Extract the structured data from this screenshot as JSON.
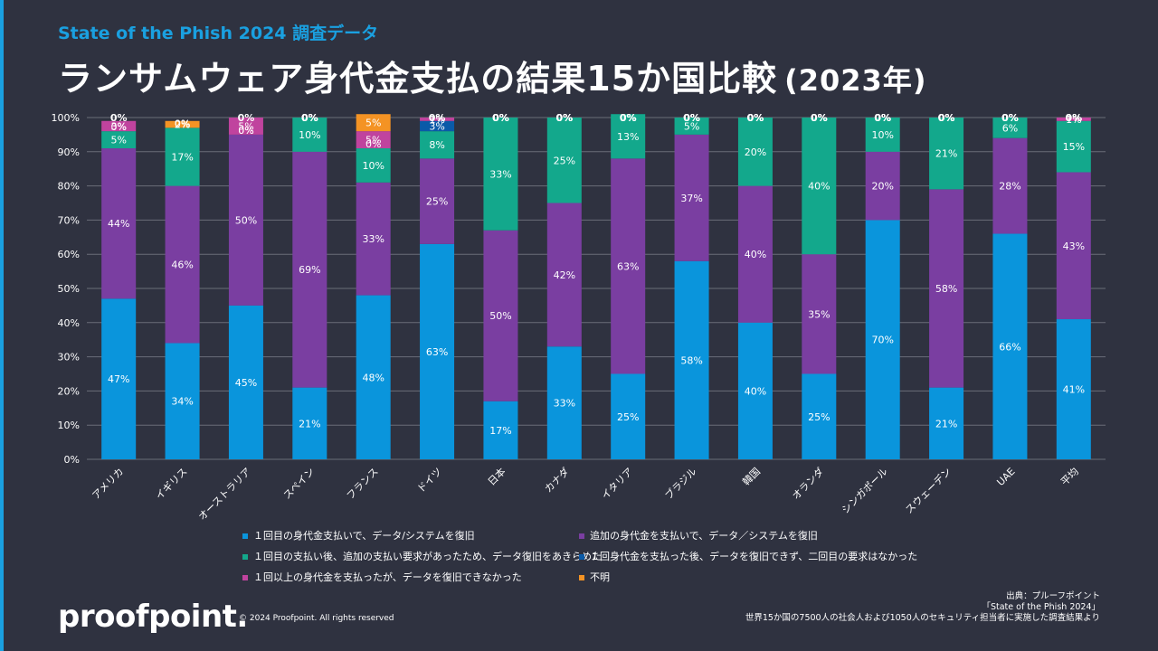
{
  "header": {
    "subtitle": "State of the Phish 2024 調査データ",
    "title": "ランサムウェア身代金支払の結果15か国比較",
    "title_year": "(2023年)"
  },
  "chart_data": {
    "type": "bar",
    "stacked": true,
    "ylim": [
      0,
      100
    ],
    "yticks": [
      "0%",
      "10%",
      "20%",
      "30%",
      "40%",
      "50%",
      "60%",
      "70%",
      "80%",
      "90%",
      "100%"
    ],
    "categories": [
      "アメリカ",
      "イギリス",
      "オーストラリア",
      "スペイン",
      "フランス",
      "ドイツ",
      "日本",
      "カナダ",
      "イタリア",
      "ブラジル",
      "韓国",
      "オランダ",
      "シンガポール",
      "スウェーデン",
      "UAE",
      "平均"
    ],
    "series": [
      {
        "name": "１回目の身代金支払いで、データ/システムを復旧",
        "color": "#0a95dc",
        "values": [
          47,
          34,
          45,
          21,
          48,
          63,
          17,
          33,
          25,
          58,
          40,
          25,
          70,
          21,
          66,
          41
        ]
      },
      {
        "name": "追加の身代金を支払いで、データ／システムを復旧",
        "color": "#7a3ea1",
        "values": [
          44,
          46,
          50,
          69,
          33,
          25,
          50,
          42,
          63,
          37,
          40,
          35,
          20,
          58,
          28,
          43
        ]
      },
      {
        "name": "１回目の支払い後、追加の支払い要求があったため、データ復旧をあきらめた",
        "color": "#13a88c",
        "values": [
          5,
          17,
          0,
          10,
          10,
          8,
          33,
          25,
          13,
          5,
          20,
          40,
          10,
          21,
          6,
          15
        ]
      },
      {
        "name": "１回身代金を支払った後、データを復旧できず、二回目の要求はなかった",
        "color": "#0a5aa8",
        "values": [
          0,
          0,
          0,
          0,
          0,
          3,
          0,
          0,
          0,
          0,
          0,
          0,
          0,
          0,
          0,
          0
        ]
      },
      {
        "name": "１回以上の身代金を支払ったが、データを復旧できなかった",
        "color": "#c0439e",
        "values": [
          3,
          0,
          5,
          0,
          5,
          1,
          0,
          0,
          0,
          0,
          0,
          0,
          0,
          0,
          0,
          1
        ]
      },
      {
        "name": "不明",
        "color": "#f49324",
        "values": [
          0,
          2,
          0,
          0,
          5,
          0,
          0,
          0,
          0,
          0,
          0,
          0,
          0,
          0,
          0,
          0
        ]
      }
    ]
  },
  "footer": {
    "logo": "proofpoint.",
    "copyright": "© 2024 Proofpoint. All rights reserved",
    "source_line1": "出典：プルーフポイント",
    "source_line2": "「State of the Phish 2024」",
    "source_line3": "世界15か国の7500人の社会人および1050人のセキュリティ担当者に実施した調査結果より"
  }
}
